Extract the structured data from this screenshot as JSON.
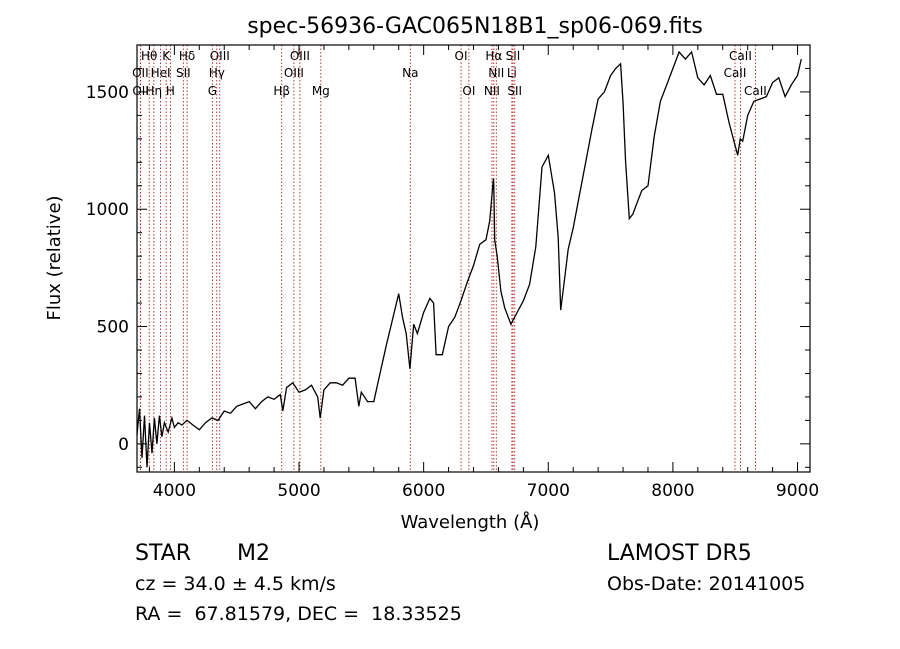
{
  "chart_data": {
    "type": "line",
    "title": "spec-56936-GAC065N18B1_sp06-069.fits",
    "xlabel": "Wavelength (Å)",
    "ylabel": "Flux (relative)",
    "xlim": [
      3700,
      9100
    ],
    "ylim": [
      -120,
      1700
    ],
    "xticks": [
      4000,
      5000,
      6000,
      7000,
      8000,
      9000
    ],
    "yticks": [
      0,
      500,
      1000,
      1500
    ],
    "grid": false,
    "line_color": "#000000",
    "marker_color": "#b22222",
    "series": [
      {
        "x": [
          3700,
          3720,
          3740,
          3760,
          3780,
          3800,
          3820,
          3840,
          3860,
          3880,
          3900,
          3920,
          3950,
          3980,
          4000,
          4030,
          4060,
          4100,
          4150,
          4200,
          4250,
          4300,
          4350,
          4400,
          4450,
          4500,
          4550,
          4600,
          4650,
          4700,
          4750,
          4800,
          4850,
          4870,
          4900,
          4950,
          5000,
          5050,
          5100,
          5150,
          5170,
          5200,
          5250,
          5300,
          5350,
          5400,
          5450,
          5480,
          5500,
          5550,
          5600,
          5650,
          5700,
          5750,
          5800,
          5830,
          5860,
          5890,
          5920,
          5950,
          6000,
          6050,
          6080,
          6100,
          6150,
          6200,
          6250,
          6300,
          6350,
          6400,
          6450,
          6500,
          6530,
          6560,
          6563,
          6570,
          6590,
          6620,
          6650,
          6700,
          6750,
          6800,
          6850,
          6900,
          6950,
          7000,
          7050,
          7080,
          7100,
          7130,
          7160,
          7200,
          7250,
          7300,
          7350,
          7400,
          7450,
          7500,
          7540,
          7580,
          7600,
          7620,
          7650,
          7680,
          7700,
          7750,
          7800,
          7850,
          7900,
          7950,
          8000,
          8050,
          8100,
          8150,
          8200,
          8250,
          8300,
          8350,
          8400,
          8450,
          8500,
          8520,
          8540,
          8560,
          8600,
          8650,
          8700,
          8750,
          8800,
          8850,
          8900,
          8950,
          9000,
          9030
        ],
        "y": [
          40,
          150,
          -60,
          120,
          -100,
          90,
          -40,
          110,
          0,
          120,
          30,
          90,
          50,
          110,
          70,
          90,
          80,
          100,
          80,
          60,
          90,
          110,
          100,
          140,
          130,
          160,
          170,
          180,
          150,
          180,
          200,
          190,
          210,
          140,
          240,
          260,
          220,
          230,
          250,
          200,
          110,
          230,
          260,
          260,
          250,
          280,
          280,
          160,
          220,
          180,
          180,
          300,
          420,
          530,
          640,
          540,
          470,
          320,
          510,
          470,
          560,
          620,
          600,
          380,
          380,
          500,
          540,
          610,
          690,
          760,
          850,
          870,
          950,
          1130,
          1100,
          870,
          800,
          650,
          580,
          510,
          560,
          610,
          680,
          840,
          1180,
          1230,
          1070,
          880,
          570,
          700,
          830,
          920,
          1060,
          1200,
          1340,
          1470,
          1500,
          1570,
          1600,
          1620,
          1450,
          1210,
          960,
          980,
          1010,
          1080,
          1100,
          1310,
          1460,
          1530,
          1600,
          1670,
          1640,
          1670,
          1560,
          1530,
          1570,
          1490,
          1490,
          1370,
          1270,
          1230,
          1300,
          1290,
          1400,
          1460,
          1470,
          1480,
          1540,
          1560,
          1480,
          1530,
          1570,
          1640
        ]
      }
    ],
    "line_markers": [
      {
        "label": "Hθ",
        "x": 3798,
        "row": 0
      },
      {
        "label": "K",
        "x": 3934,
        "row": 0
      },
      {
        "label": "Hδ",
        "x": 4102,
        "row": 0
      },
      {
        "label": "OIII",
        "x": 4364,
        "row": 0
      },
      {
        "label": "OIII",
        "x": 5007,
        "row": 0
      },
      {
        "label": "OI",
        "x": 6300,
        "row": 0
      },
      {
        "label": "Hα",
        "x": 6563,
        "row": 0
      },
      {
        "label": "SII",
        "x": 6717,
        "row": 0
      },
      {
        "label": "CaII",
        "x": 8542,
        "row": 0
      },
      {
        "label": "OII",
        "x": 3727,
        "row": 1
      },
      {
        "label": "HeI",
        "x": 3889,
        "row": 1
      },
      {
        "label": "SII",
        "x": 4072,
        "row": 1
      },
      {
        "label": "Hγ",
        "x": 4340,
        "row": 1
      },
      {
        "label": "OIII",
        "x": 4959,
        "row": 1
      },
      {
        "label": "Na",
        "x": 5893,
        "row": 1
      },
      {
        "label": "NII",
        "x": 6583,
        "row": 1
      },
      {
        "label": "Li",
        "x": 6708,
        "row": 1
      },
      {
        "label": "CaII",
        "x": 8498,
        "row": 1
      },
      {
        "label": "OII",
        "x": 3729,
        "row": 2
      },
      {
        "label": "Hη",
        "x": 3835,
        "row": 2
      },
      {
        "label": "H",
        "x": 3968,
        "row": 2
      },
      {
        "label": "G",
        "x": 4305,
        "row": 2
      },
      {
        "label": "Hβ",
        "x": 4861,
        "row": 2
      },
      {
        "label": "Mg",
        "x": 5175,
        "row": 2
      },
      {
        "label": "OI",
        "x": 6363,
        "row": 2
      },
      {
        "label": "NII",
        "x": 6548,
        "row": 2
      },
      {
        "label": "SII",
        "x": 6731,
        "row": 2
      },
      {
        "label": "CaII",
        "x": 8662,
        "row": 2
      }
    ]
  },
  "info": {
    "class_label": "STAR",
    "subclass_label": "M2",
    "survey": "LAMOST DR5",
    "cz": "cz = 34.0 ± 4.5 km/s",
    "obs_date": "Obs-Date: 20141005",
    "radec": "RA =  67.81579, DEC =  18.33525"
  }
}
